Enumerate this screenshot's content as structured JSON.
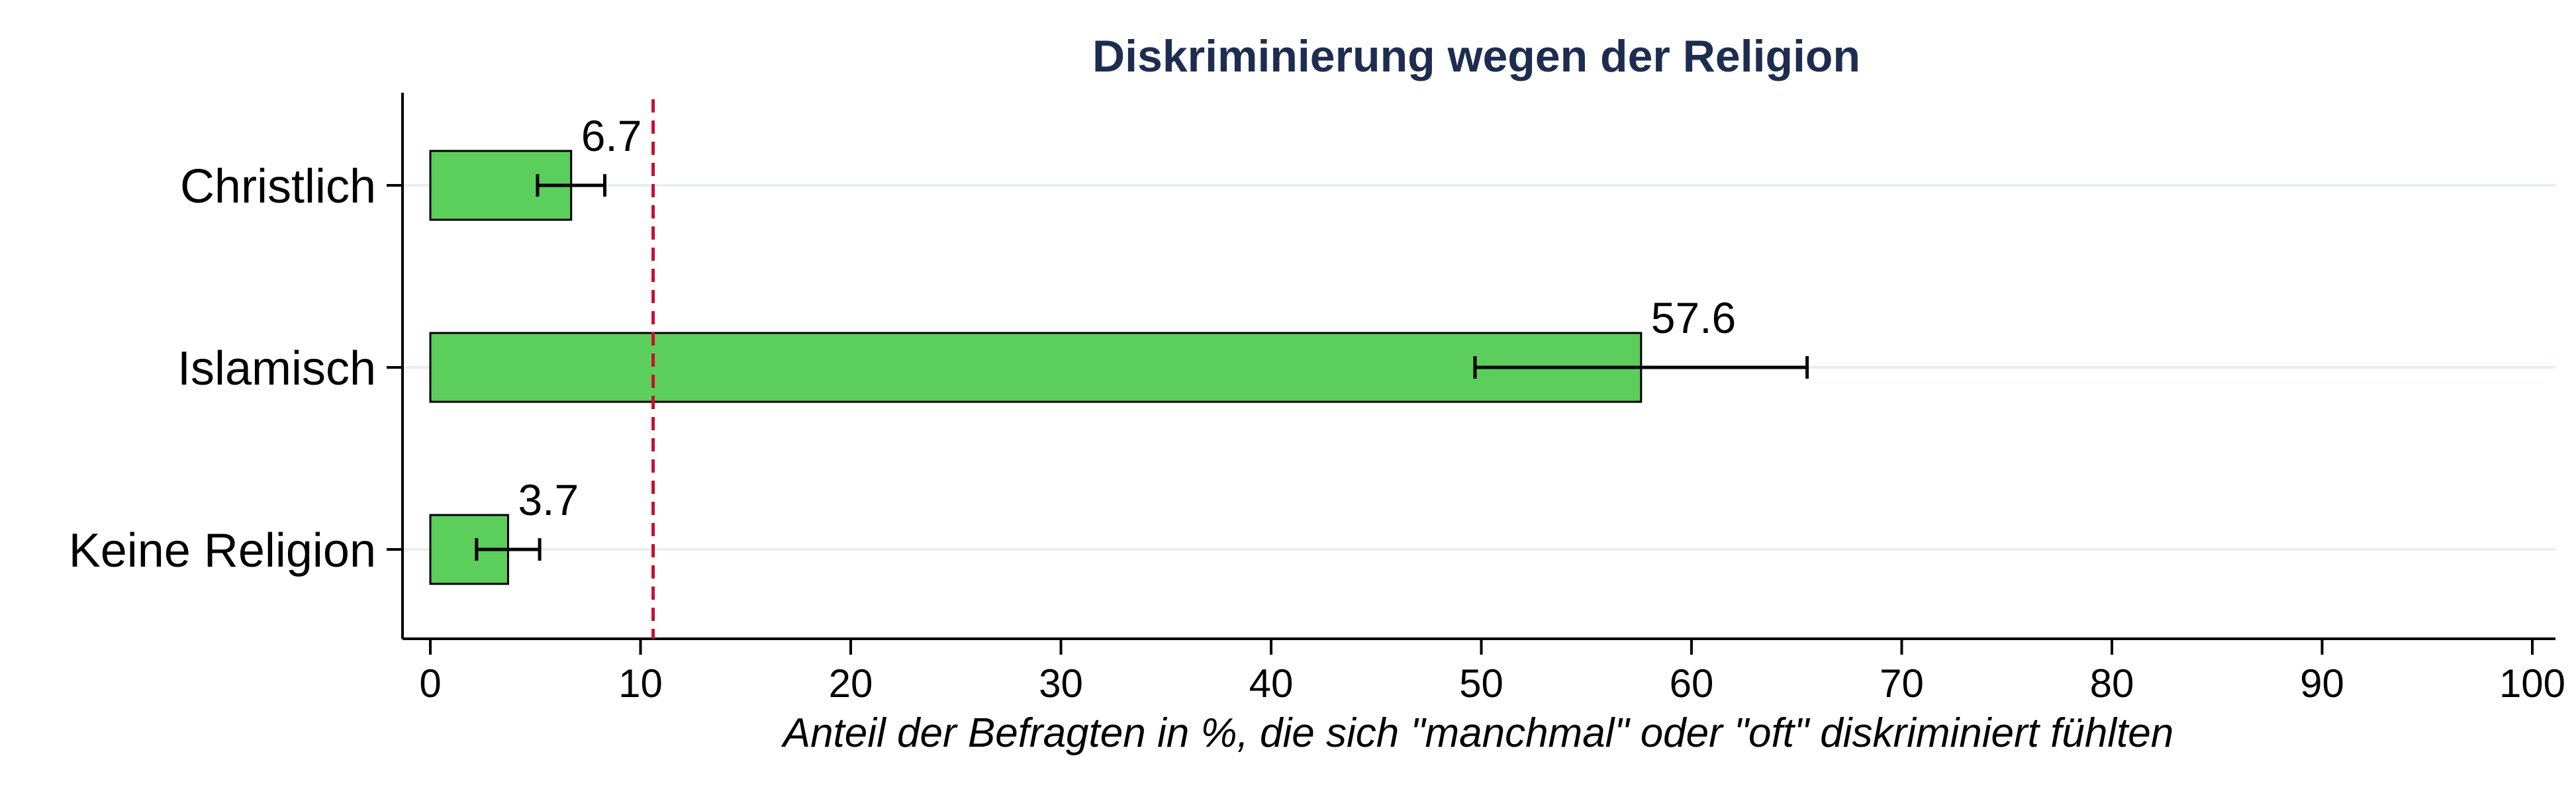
{
  "chart_data": {
    "type": "bar",
    "orientation": "horizontal",
    "title": "Diskriminierung wegen der Religion",
    "xlabel": "Anteil der Befragten in %, die sich \"manchmal\" oder \"oft\" diskriminiert fühlten",
    "ylabel": "",
    "categories": [
      "Christlich",
      "Islamisch",
      "Keine Religion"
    ],
    "values": [
      6.7,
      57.6,
      3.7
    ],
    "value_labels": [
      "6.7",
      "57.6",
      "3.7"
    ],
    "error_bars": [
      {
        "low": 5.1,
        "high": 8.3
      },
      {
        "low": 49.7,
        "high": 65.5
      },
      {
        "low": 2.2,
        "high": 5.2
      }
    ],
    "reference_line": {
      "x": 10.6,
      "style": "dashed",
      "color": "#c8102e"
    },
    "xlim": [
      0,
      100
    ],
    "xticks": [
      0,
      10,
      20,
      30,
      40,
      50,
      60,
      70,
      80,
      90,
      100
    ],
    "grid": "horizontal lines at categories",
    "legend": "none",
    "colors": {
      "bar_fill": "#5cce5c",
      "bar_edge": "#000000",
      "title": "#1e2d4f",
      "grid": "#e6f0f2"
    }
  }
}
